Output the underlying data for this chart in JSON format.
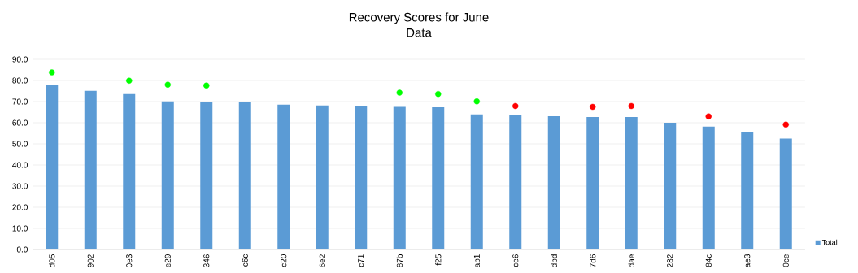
{
  "chart_data": {
    "type": "bar",
    "title": "Recovery Scores for June",
    "subtitle": "Data",
    "categories": [
      "d05",
      "902",
      "0e3",
      "e29",
      "346",
      "c6c",
      "c20",
      "6e2",
      "c71",
      "87b",
      "f25",
      "ab1",
      "ce6",
      "dbd",
      "7d6",
      "dae",
      "282",
      "84c",
      "ae3",
      "0ce"
    ],
    "series": [
      {
        "name": "Total",
        "color": "#5b9bd5",
        "values": [
          77.7,
          75.1,
          73.6,
          70.1,
          69.8,
          69.8,
          68.6,
          68.2,
          67.9,
          67.5,
          67.3,
          63.9,
          63.5,
          63.1,
          62.7,
          62.7,
          60.0,
          58.2,
          55.5,
          52.5
        ]
      },
      {
        "type": "scatter",
        "color": "#00ff00",
        "values": [
          83.8,
          null,
          79.9,
          78.0,
          77.6,
          null,
          null,
          null,
          null,
          74.2,
          73.6,
          70.1,
          null,
          null,
          null,
          null,
          null,
          null,
          null,
          null
        ]
      },
      {
        "type": "scatter",
        "color": "#ff0000",
        "values": [
          null,
          null,
          null,
          null,
          null,
          null,
          null,
          null,
          null,
          null,
          null,
          null,
          67.9,
          null,
          67.5,
          67.9,
          null,
          63.0,
          null,
          59.1
        ]
      }
    ],
    "ylim": [
      0,
      90
    ],
    "yticks": [
      {
        "value": 0,
        "label": "0.0"
      },
      {
        "value": 10,
        "label": "10.0"
      },
      {
        "value": 20,
        "label": "20.0"
      },
      {
        "value": 30,
        "label": "30.0"
      },
      {
        "value": 40,
        "label": "40.0"
      },
      {
        "value": 50,
        "label": "50.0"
      },
      {
        "value": 60,
        "label": "60.0"
      },
      {
        "value": 70,
        "label": "70.0"
      },
      {
        "value": 80,
        "label": "80.0"
      },
      {
        "value": 90,
        "label": "90.0"
      }
    ],
    "grid": "y",
    "legend": "bottom right",
    "marker": "circle"
  }
}
